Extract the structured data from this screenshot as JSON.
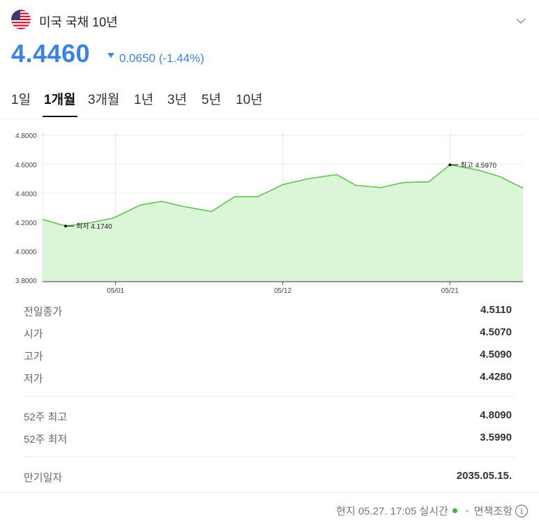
{
  "header": {
    "title": "미국 국채 10년",
    "flag_icon": "us-flag-icon",
    "expand_icon": "chevron-down-icon"
  },
  "quote": {
    "price": "4.4460",
    "change": "0.0650 (-1.44%)",
    "direction": "down",
    "color": "#3b82e8"
  },
  "tabs": [
    {
      "label": "1일",
      "active": false
    },
    {
      "label": "1개월",
      "active": true
    },
    {
      "label": "3개월",
      "active": false
    },
    {
      "label": "1년",
      "active": false
    },
    {
      "label": "3년",
      "active": false
    },
    {
      "label": "5년",
      "active": false
    },
    {
      "label": "10년",
      "active": false
    }
  ],
  "chart_data": {
    "type": "area",
    "title": "",
    "xlabel": "",
    "ylabel": "",
    "y_tick_labels": [
      "4.8000",
      "4.6000",
      "4.4000",
      "4.2000",
      "4.0000",
      "3.8000"
    ],
    "y_ticks": [
      4.8,
      4.6,
      4.4,
      4.2,
      4.0,
      3.8
    ],
    "ylim": [
      3.79,
      4.83
    ],
    "x_tick_labels": [
      "05/01",
      "05/12",
      "05/21"
    ],
    "x_tick_index": [
      3.8,
      12.5,
      21.2
    ],
    "values": [
      4.22,
      4.174,
      4.195,
      4.23,
      4.32,
      4.345,
      4.31,
      4.275,
      4.377,
      4.377,
      4.46,
      4.5,
      4.53,
      4.455,
      4.44,
      4.475,
      4.48,
      4.597,
      4.56,
      4.515,
      4.436
    ],
    "x_index": [
      0,
      1.2,
      2.4,
      3.7,
      5.1,
      6.2,
      7.3,
      8.8,
      10.0,
      11.2,
      12.5,
      13.8,
      15.3,
      16.3,
      17.6,
      18.8,
      20.1,
      21.2,
      22.7,
      23.8,
      25.0
    ],
    "x_max": 25.0,
    "line_color": "#5ac84a",
    "fill_color": "#dbf5d7",
    "grid": true,
    "annotations": [
      {
        "label": "최저 4.1740",
        "index": 1
      },
      {
        "label": "최고 4.5970",
        "index": 17
      }
    ]
  },
  "stats": {
    "group1": [
      {
        "label": "전일종가",
        "value": "4.5110"
      },
      {
        "label": "시가",
        "value": "4.5070"
      },
      {
        "label": "고가",
        "value": "4.5090"
      },
      {
        "label": "저가",
        "value": "4.4280"
      }
    ],
    "group2": [
      {
        "label": "52주 최고",
        "value": "4.8090"
      },
      {
        "label": "52주 최저",
        "value": "3.5990"
      }
    ],
    "group3": [
      {
        "label": "만기일자",
        "value": "2035.05.15."
      }
    ]
  },
  "footer": {
    "time": "현지 05.27. 17:05 실시간",
    "disclaimer": "면책조항",
    "live_color": "#3cb43c"
  }
}
